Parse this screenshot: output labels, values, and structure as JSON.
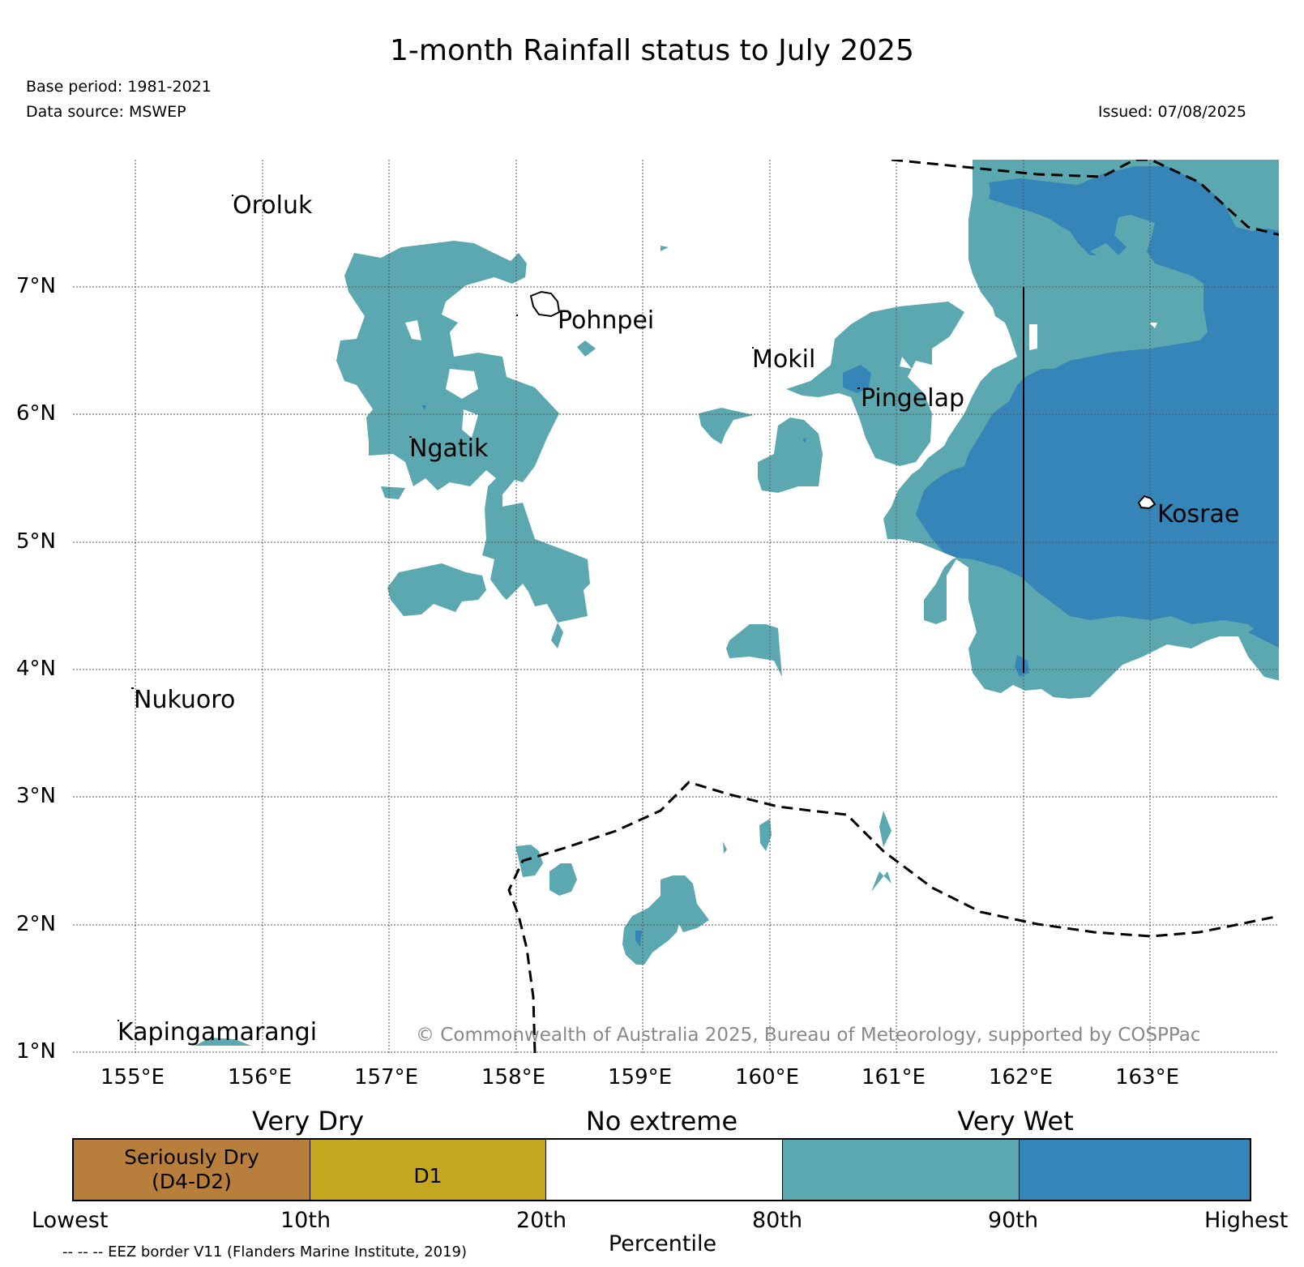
{
  "title": "1-month Rainfall status to July 2025",
  "base_period": "Base period: 1981-2021",
  "data_source": "Data source: MSWEP",
  "issued": "Issued: 07/08/2025",
  "copyright": "© Commonwealth of Australia 2025, Bureau of Meteorology, supported by COSPPac",
  "map": {
    "lon_range": [
      154.5,
      164.0
    ],
    "lat_range": [
      1.0,
      8.0
    ],
    "lon_ticks": [
      "155°E",
      "156°E",
      "157°E",
      "158°E",
      "159°E",
      "160°E",
      "161°E",
      "162°E",
      "163°E"
    ],
    "lat_ticks": [
      "1°N",
      "2°N",
      "3°N",
      "4°N",
      "5°N",
      "6°N",
      "7°N"
    ],
    "gridlines": true,
    "places": [
      {
        "name": "Oroluk",
        "lon": 155.8,
        "lat": 7.7
      },
      {
        "name": "Pohnpei",
        "lon": 158.2,
        "lat": 6.85
      },
      {
        "name": "Mokil",
        "lon": 159.8,
        "lat": 6.6
      },
      {
        "name": "Pingelap",
        "lon": 160.7,
        "lat": 6.2
      },
      {
        "name": "Ngatik",
        "lon": 157.1,
        "lat": 5.8
      },
      {
        "name": "Kosrae",
        "lon": 163.0,
        "lat": 5.3
      },
      {
        "name": "Nukuoro",
        "lon": 155.0,
        "lat": 3.85
      },
      {
        "name": "Kapingamarangi",
        "lon": 154.85,
        "lat": 1.2
      }
    ],
    "colors": {
      "very_wet_80_90": "#5ba8b0",
      "very_wet_90_plus": "#3585b8",
      "seriously_dry": "#b87f3c",
      "d1": "#c4a61f"
    }
  },
  "legend": {
    "group_labels": [
      "Very Dry",
      "No extreme",
      "Very Wet"
    ],
    "categories": [
      {
        "label": "Seriously Dry\n(D4-D2)",
        "color": "#b87f3c"
      },
      {
        "label": "D1",
        "color": "#c4a61f"
      },
      {
        "label": "",
        "color": "#ffffff"
      },
      {
        "label": "",
        "color": "#5ba8b0"
      },
      {
        "label": "",
        "color": "#3585b8"
      }
    ],
    "ticks": [
      "Lowest",
      "10th",
      "20th",
      "80th",
      "90th",
      "Highest"
    ],
    "xlabel": "Percentile",
    "eez_note": "-- -- -- EEZ border V11 (Flanders Marine Institute, 2019)"
  }
}
